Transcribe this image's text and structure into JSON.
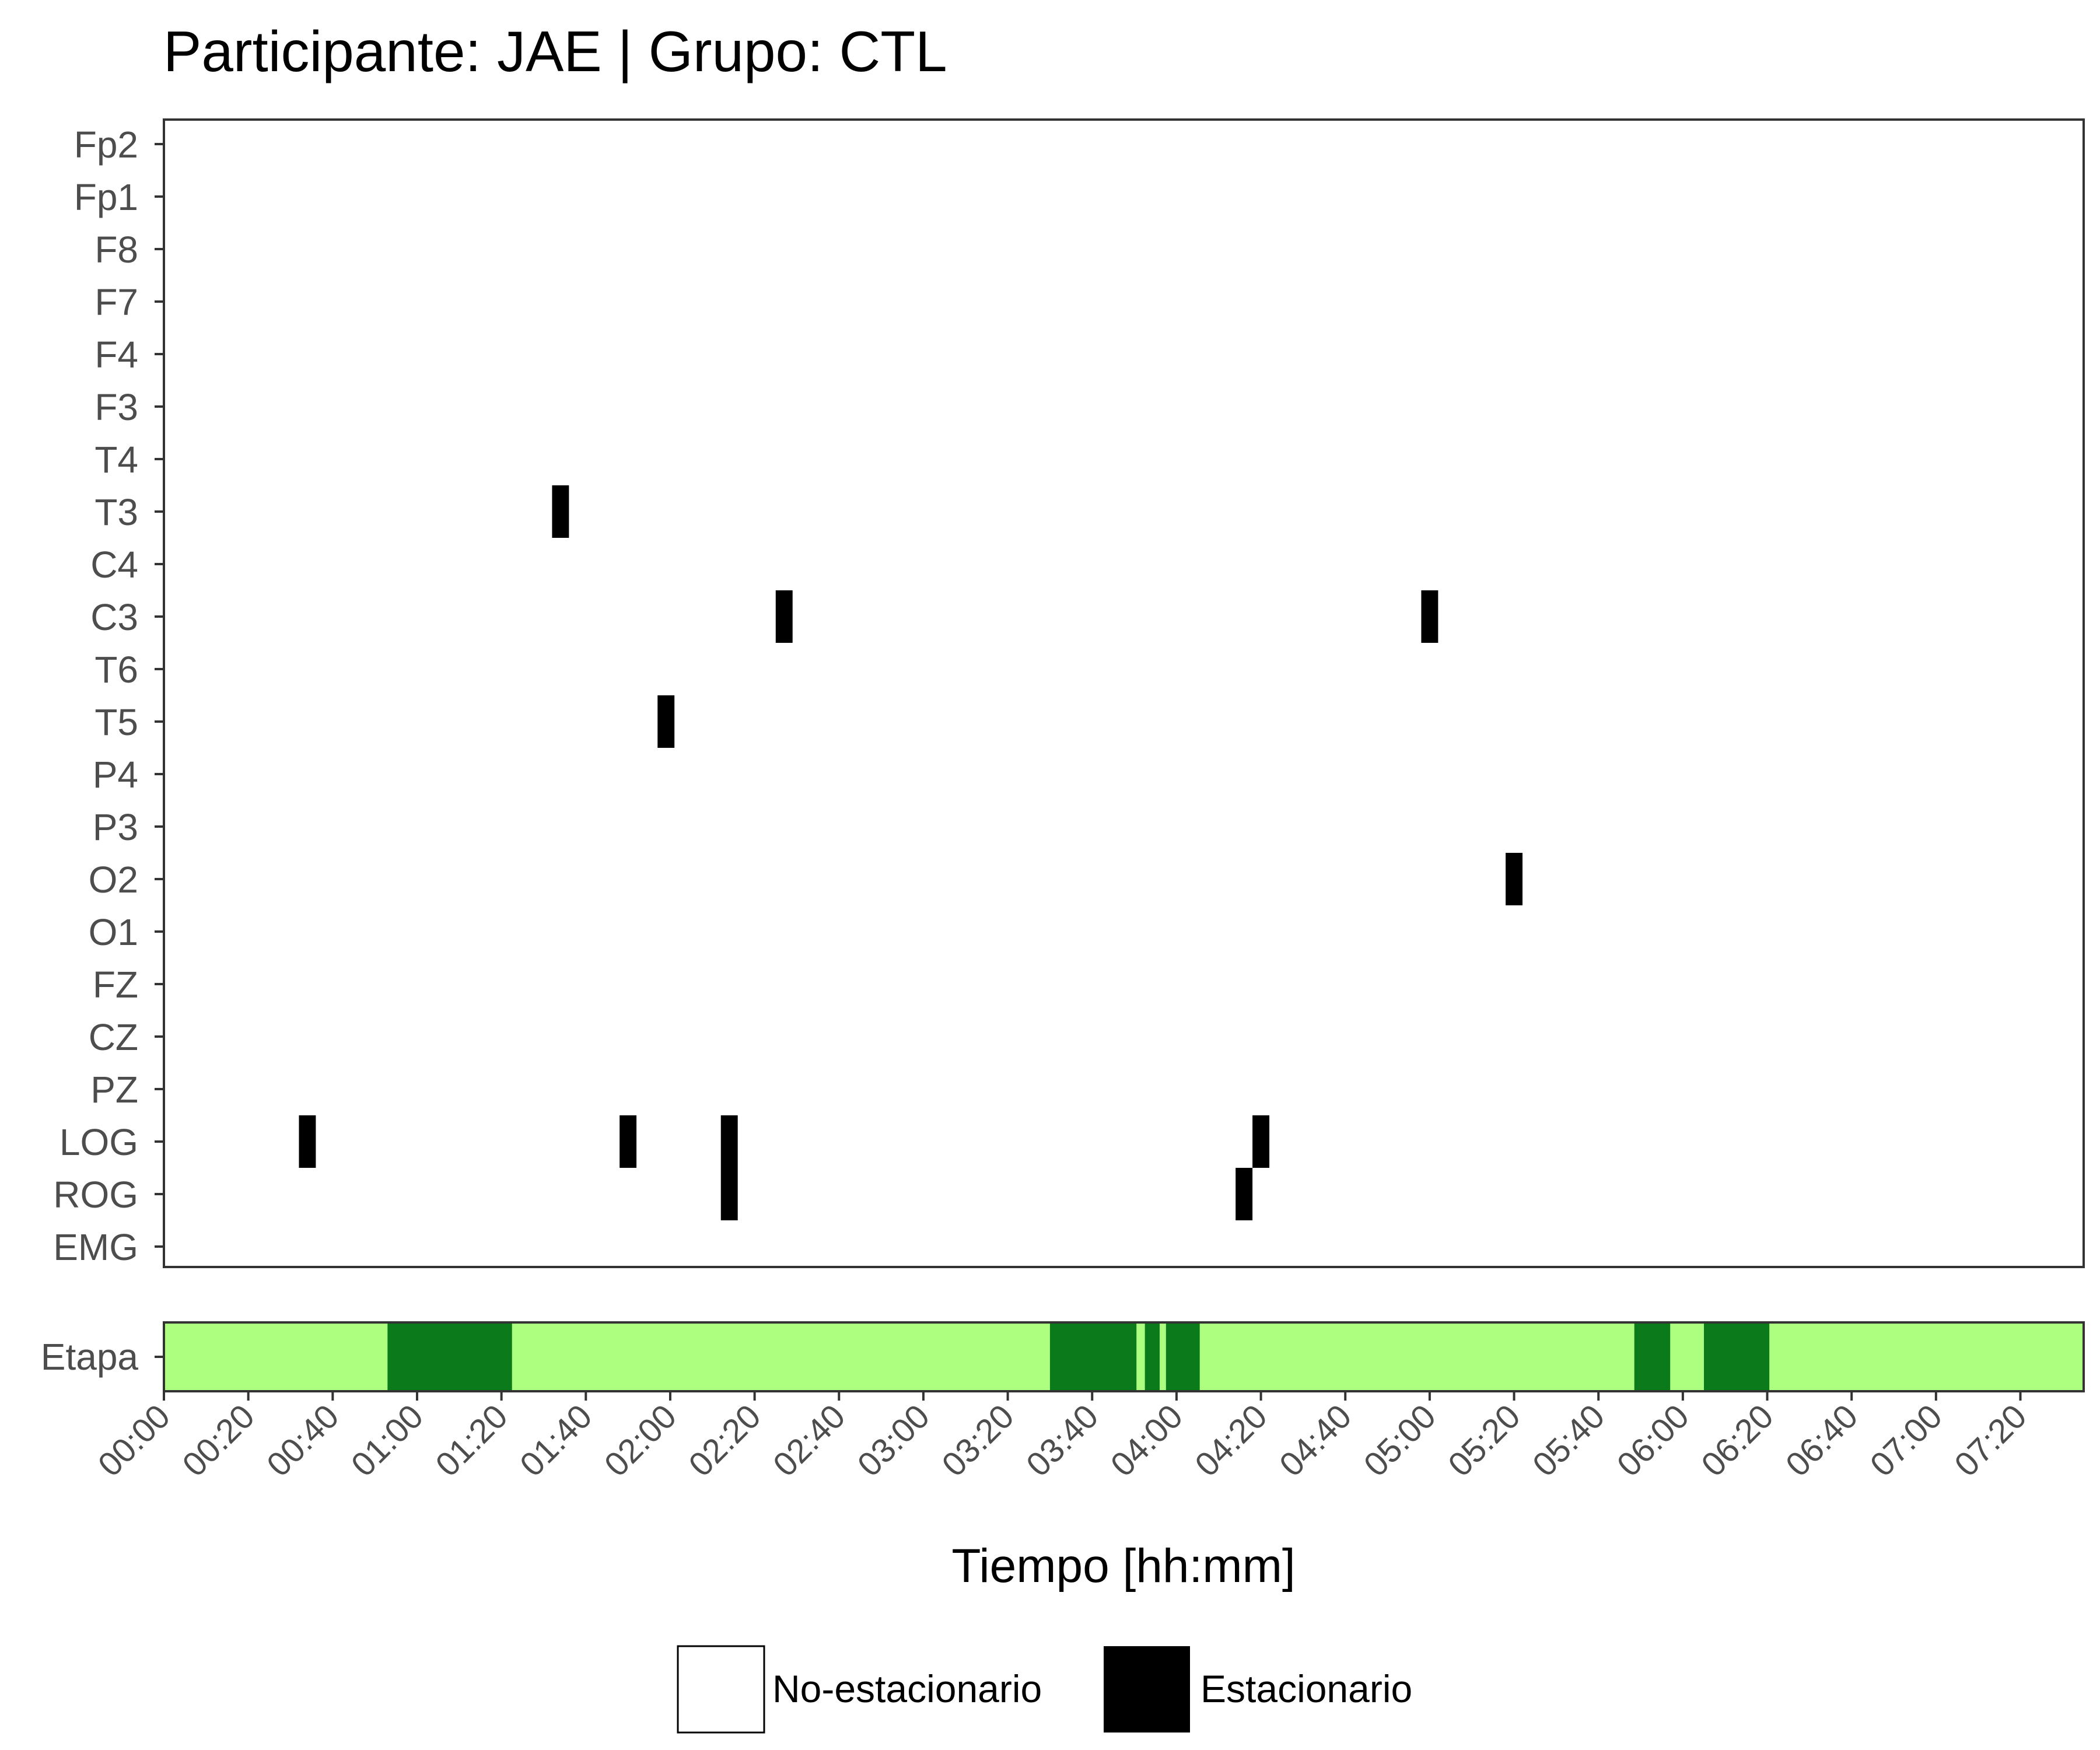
{
  "chart_data": {
    "type": "heatmap",
    "title": "Participante: JAE | Grupo: CTL",
    "xlabel": "Tiempo [hh:mm]",
    "x_range_minutes": [
      0,
      455
    ],
    "x_ticks": [
      "00:00",
      "00:20",
      "00:40",
      "01:00",
      "01:20",
      "01:40",
      "02:00",
      "02:20",
      "02:40",
      "03:00",
      "03:20",
      "03:40",
      "04:00",
      "04:20",
      "04:40",
      "05:00",
      "05:20",
      "05:40",
      "06:00",
      "06:20",
      "06:40",
      "07:00",
      "07:20"
    ],
    "channels": [
      "Fp2",
      "Fp1",
      "F8",
      "F7",
      "F4",
      "F3",
      "T4",
      "T3",
      "C4",
      "C3",
      "T6",
      "T5",
      "P4",
      "P3",
      "O2",
      "O1",
      "FZ",
      "CZ",
      "PZ",
      "LOG",
      "ROG",
      "EMG"
    ],
    "epoch_minutes": 4,
    "stationary_segments": [
      {
        "channel": "T3",
        "start_minutes": 92
      },
      {
        "channel": "C3",
        "start_minutes": 145
      },
      {
        "channel": "C3",
        "start_minutes": 298
      },
      {
        "channel": "T5",
        "start_minutes": 117
      },
      {
        "channel": "O2",
        "start_minutes": 318
      },
      {
        "channel": "LOG",
        "start_minutes": 32
      },
      {
        "channel": "LOG",
        "start_minutes": 108
      },
      {
        "channel": "LOG",
        "start_minutes": 132
      },
      {
        "channel": "LOG",
        "start_minutes": 258
      },
      {
        "channel": "ROG",
        "start_minutes": 132
      },
      {
        "channel": "ROG",
        "start_minutes": 254
      }
    ],
    "stage_label": "Etapa",
    "stage_colors": {
      "background": "#adff80",
      "highlight": "#0a7a1a"
    },
    "stage_segments": [
      {
        "start_minutes": 53,
        "end_minutes": 82.5
      },
      {
        "start_minutes": 210,
        "end_minutes": 230.5
      },
      {
        "start_minutes": 232.5,
        "end_minutes": 236
      },
      {
        "start_minutes": 237.5,
        "end_minutes": 245.5
      },
      {
        "start_minutes": 348.5,
        "end_minutes": 357
      },
      {
        "start_minutes": 365,
        "end_minutes": 380.5
      }
    ],
    "legend": [
      {
        "label": "No-estacionario",
        "color": "#ffffff"
      },
      {
        "label": "Estacionario",
        "color": "#000000"
      }
    ],
    "legend_position": "bottom",
    "grid": false
  }
}
